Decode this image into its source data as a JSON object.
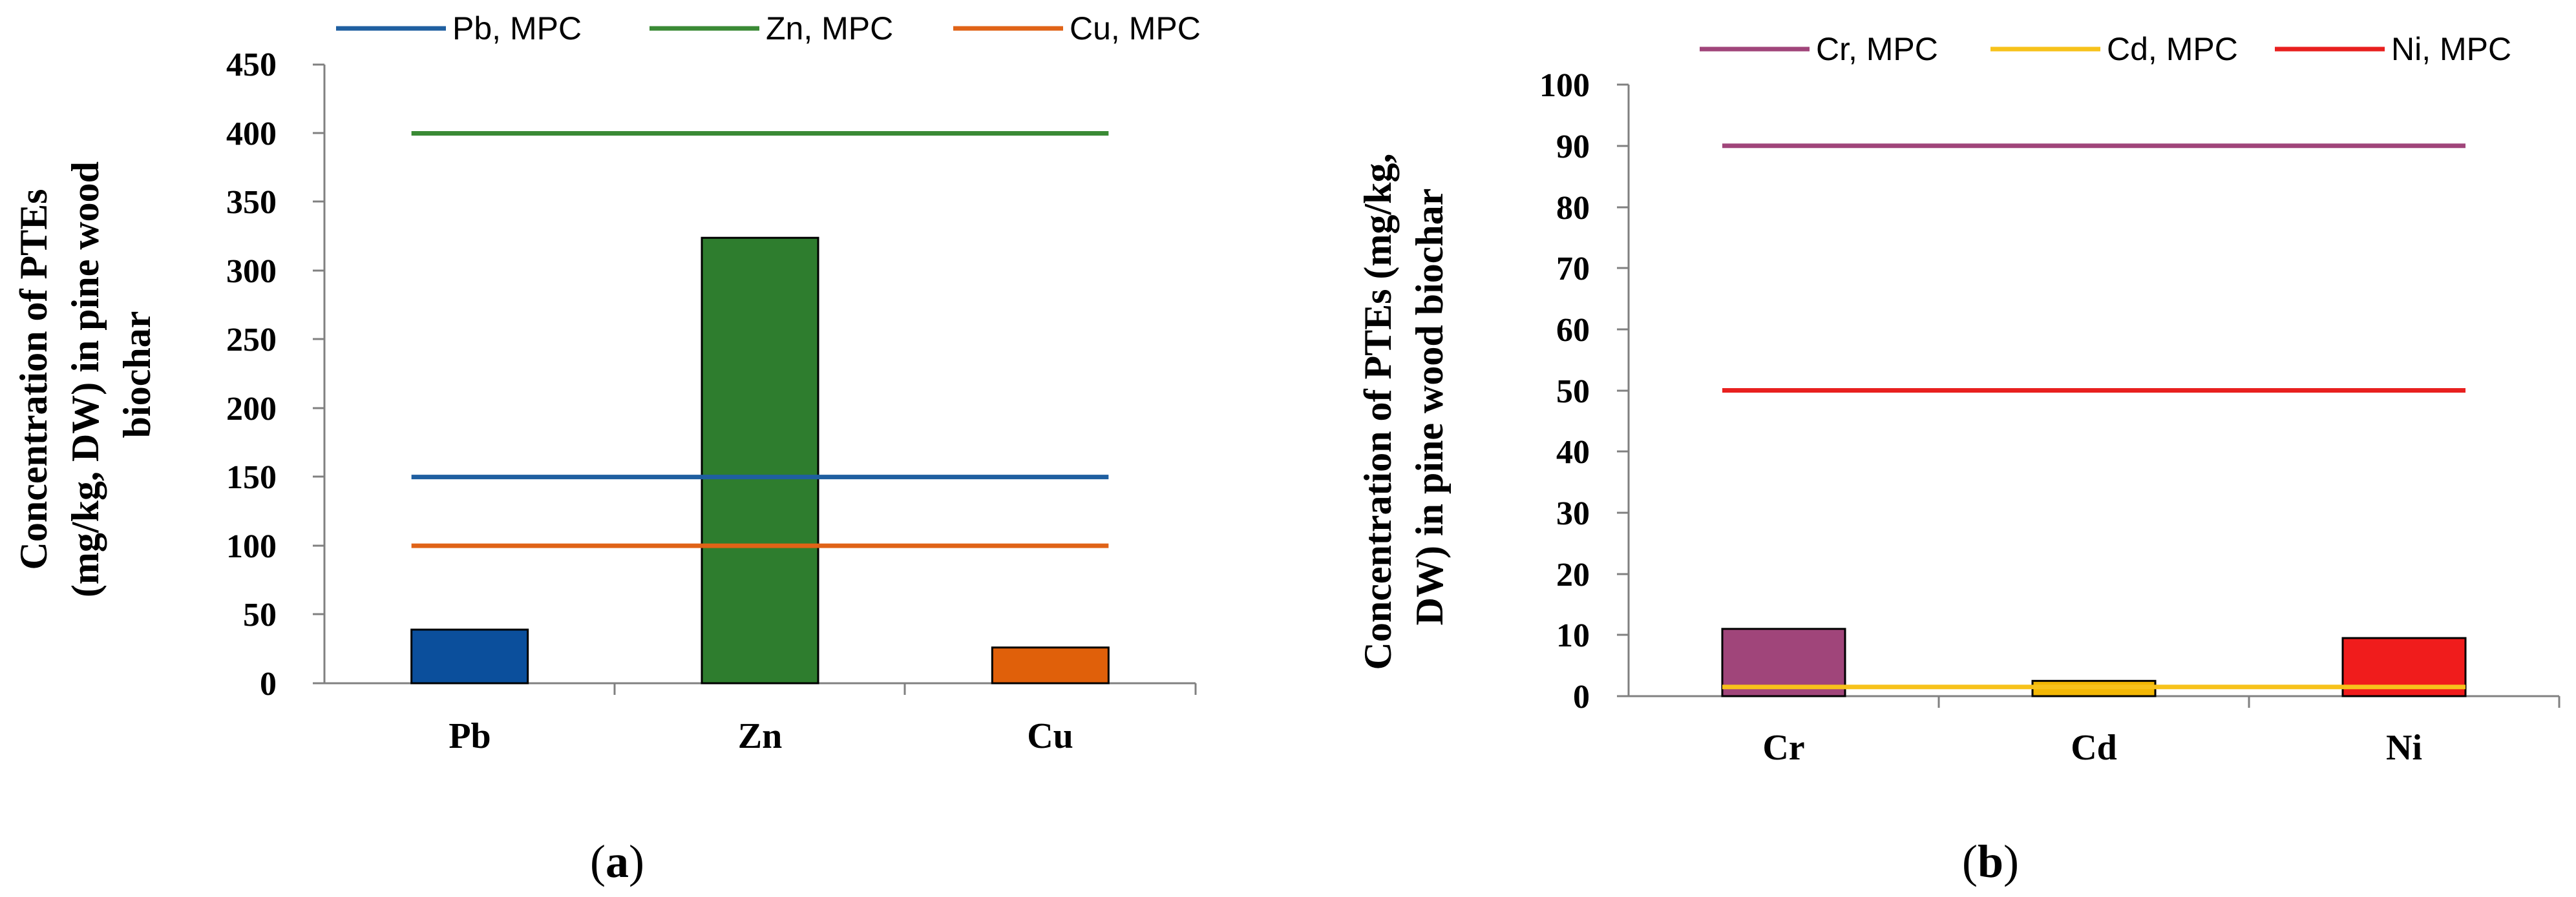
{
  "chart_data": [
    {
      "type": "bar",
      "panel_label": "(a)",
      "panel_letter": "a",
      "ylabel_lines": [
        "Concentration of PTEs",
        "(mg/kg, DW) in pine wood",
        "biochar"
      ],
      "ylim": [
        0,
        450
      ],
      "yticks": [
        0,
        50,
        100,
        150,
        200,
        250,
        300,
        350,
        400,
        450
      ],
      "categories": [
        "Pb",
        "Zn",
        "Cu"
      ],
      "values": [
        39,
        324,
        26
      ],
      "bar_colors": [
        "#0b4f9c",
        "#2e7d2e",
        "#e0600a"
      ],
      "reference_lines": [
        {
          "name": "Pb, MPC",
          "value": 150,
          "color": "#1f5fa0"
        },
        {
          "name": "Zn, MPC",
          "value": 400,
          "color": "#3a8a35"
        },
        {
          "name": "Cu, MPC",
          "value": 100,
          "color": "#e06317"
        }
      ],
      "legend_position": "top"
    },
    {
      "type": "bar",
      "panel_label": "(b)",
      "panel_letter": "b",
      "ylabel_lines": [
        "Concentration of PTEs (mg/kg,",
        "DW) in pine wood biochar"
      ],
      "ylim": [
        0,
        100
      ],
      "yticks": [
        0,
        10,
        20,
        30,
        40,
        50,
        60,
        70,
        80,
        90,
        100
      ],
      "categories": [
        "Cr",
        "Cd",
        "Ni"
      ],
      "values": [
        11,
        2.5,
        9.5
      ],
      "bar_colors": [
        "#a0457a",
        "#f2b705",
        "#f01c1c"
      ],
      "reference_lines": [
        {
          "name": "Cr, MPC",
          "value": 90,
          "color": "#a0457a"
        },
        {
          "name": "Cd, MPC",
          "value": 1.5,
          "color": "#f7c21b"
        },
        {
          "name": "Ni, MPC",
          "value": 50,
          "color": "#e8201f"
        }
      ],
      "legend_position": "top"
    }
  ]
}
